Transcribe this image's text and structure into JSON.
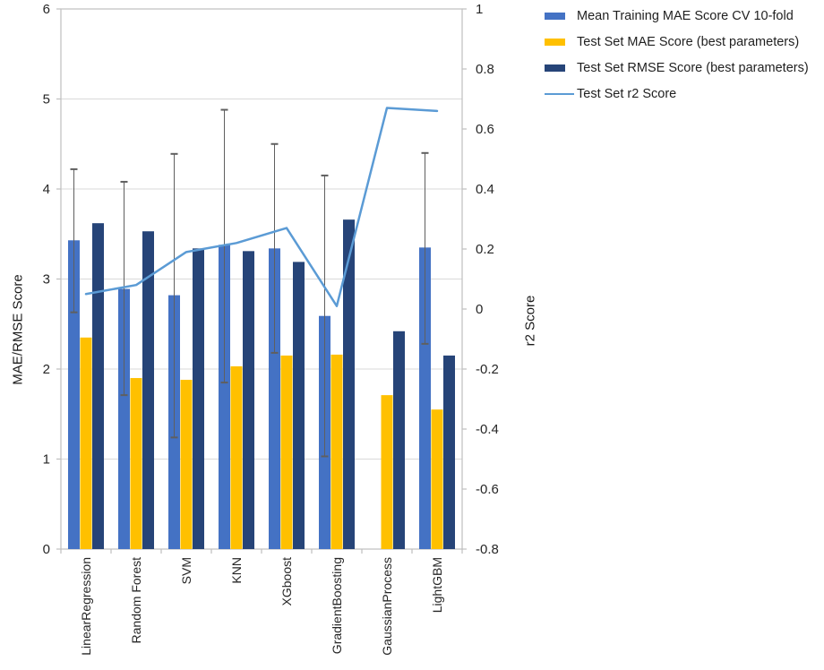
{
  "chart_data": {
    "type": "bar",
    "title": "",
    "categories": [
      "LinearRegression",
      "Random Forest",
      "SVM",
      "KNN",
      "XGboost",
      "GradientBoosting",
      "GaussianProcess",
      "LightGBM"
    ],
    "series": [
      {
        "name": "Mean Training MAE Score CV 10-fold",
        "type": "bar",
        "axis": "left",
        "color": "#4472C4",
        "values": [
          3.43,
          2.89,
          2.82,
          3.38,
          3.34,
          2.59,
          null,
          3.35
        ],
        "error_low": [
          2.63,
          1.71,
          1.24,
          1.85,
          2.18,
          1.03,
          null,
          2.28
        ],
        "error_high": [
          4.22,
          4.08,
          4.39,
          4.88,
          4.5,
          4.15,
          null,
          4.4
        ]
      },
      {
        "name": "Test Set MAE Score (best parameters)",
        "type": "bar",
        "axis": "left",
        "color": "#FFC000",
        "values": [
          2.35,
          1.9,
          1.88,
          2.03,
          2.15,
          2.16,
          1.71,
          1.55
        ]
      },
      {
        "name": "Test Set RMSE Score (best parameters)",
        "type": "bar",
        "axis": "left",
        "color": "#264478",
        "values": [
          3.62,
          3.53,
          3.34,
          3.31,
          3.19,
          3.66,
          2.42,
          2.15
        ]
      },
      {
        "name": "Test Set r2 Score",
        "type": "line",
        "axis": "right",
        "color": "#5B9BD5",
        "values": [
          0.05,
          0.08,
          0.19,
          0.22,
          0.27,
          0.01,
          0.67,
          0.66
        ]
      }
    ],
    "left_axis": {
      "label": "MAE/RMSE Score",
      "min": 0,
      "max": 6,
      "tick_step": 1,
      "tick_labels": [
        "0",
        "1",
        "2",
        "3",
        "4",
        "5",
        "6"
      ]
    },
    "right_axis": {
      "label": "r2 Score",
      "min": -0.8,
      "max": 1,
      "tick_step": 0.2,
      "tick_labels": [
        "1",
        "0.8",
        "0.6",
        "0.4",
        "0.2",
        "0",
        "-0.2",
        "-0.4",
        "-0.6",
        "-0.8"
      ]
    },
    "grid": true,
    "legend_position": "top-right",
    "style_colors": {
      "gridline": "#D9D9D9",
      "axis_line": "#BFBFBF",
      "error_bar": "#5f5f5f",
      "text": "#262626"
    }
  }
}
